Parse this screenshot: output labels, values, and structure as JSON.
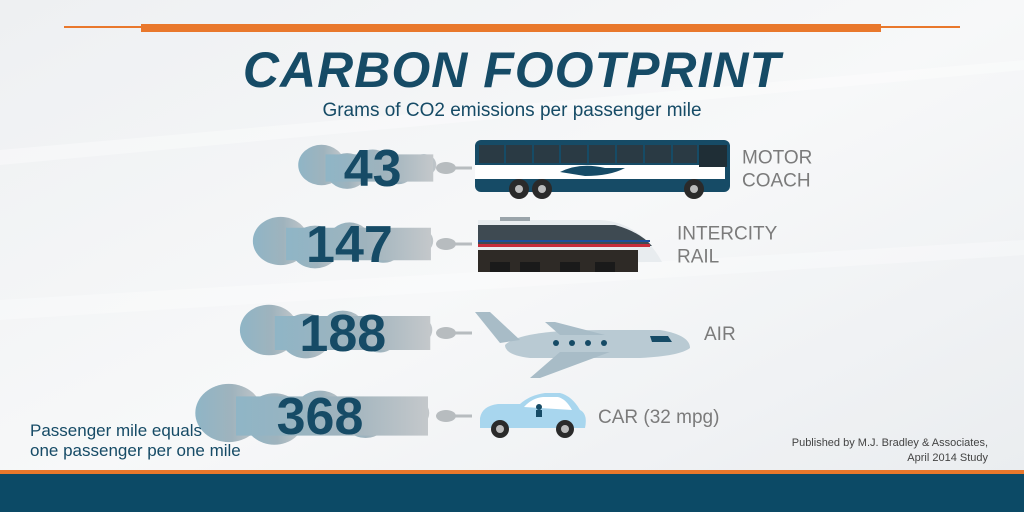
{
  "title": "CARBON FOOTPRINT",
  "subtitle": "Grams of CO2 emissions per passenger mile",
  "chart_data": {
    "type": "bar",
    "title": "CARBON FOOTPRINT",
    "subtitle": "Grams of CO2 emissions per passenger mile",
    "categories": [
      "MOTOR COACH",
      "INTERCITY RAIL",
      "AIR",
      "CAR (32 mpg)"
    ],
    "category_lines": [
      [
        "MOTOR",
        "COACH"
      ],
      [
        "INTERCITY",
        "RAIL"
      ],
      [
        "AIR"
      ],
      [
        "CAR (32 mpg)"
      ]
    ],
    "values": [
      43,
      147,
      188,
      368
    ],
    "value_labels": [
      "43",
      "147",
      "188",
      "368"
    ],
    "icons": [
      "bus-icon",
      "train-icon",
      "airplane-icon",
      "car-icon"
    ]
  },
  "note": [
    "Passenger mile equals",
    "one passenger per one mile"
  ],
  "source": [
    "Published by M.J. Bradley & Associates,",
    "April 2014 Study"
  ],
  "colors": {
    "navy": "#164b66",
    "orange": "#e9782c",
    "smoke": "#8fb5c6",
    "gray_label": "#7b7b7b"
  }
}
